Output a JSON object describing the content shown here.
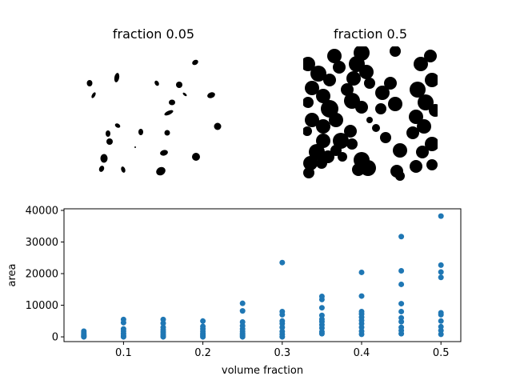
{
  "panels": [
    {
      "title": "fraction 0.05"
    },
    {
      "title": "fraction 0.5"
    }
  ],
  "chart_data": {
    "type": "scatter",
    "xlabel": "volume fraction",
    "ylabel": "area",
    "xlim": [
      0.025,
      0.525
    ],
    "ylim": [
      -1500,
      40500
    ],
    "xticks": [
      0.1,
      0.2,
      0.3,
      0.4,
      0.5
    ],
    "xtick_labels": [
      "0.1",
      "0.2",
      "0.3",
      "0.4",
      "0.5"
    ],
    "yticks": [
      0,
      10000,
      20000,
      30000,
      40000
    ],
    "ytick_labels": [
      "0",
      "10000",
      "20000",
      "30000",
      "40000"
    ],
    "grid": false,
    "marker_color": "#1f77b4",
    "points": [
      {
        "x": 0.05,
        "y": 0
      },
      {
        "x": 0.05,
        "y": 200
      },
      {
        "x": 0.05,
        "y": 500
      },
      {
        "x": 0.05,
        "y": 900
      },
      {
        "x": 0.05,
        "y": 1300
      },
      {
        "x": 0.05,
        "y": 1800
      },
      {
        "x": 0.1,
        "y": 0
      },
      {
        "x": 0.1,
        "y": 400
      },
      {
        "x": 0.1,
        "y": 1000
      },
      {
        "x": 0.1,
        "y": 1800
      },
      {
        "x": 0.1,
        "y": 2500
      },
      {
        "x": 0.1,
        "y": 4500
      },
      {
        "x": 0.1,
        "y": 5500
      },
      {
        "x": 0.15,
        "y": 0
      },
      {
        "x": 0.15,
        "y": 400
      },
      {
        "x": 0.15,
        "y": 900
      },
      {
        "x": 0.15,
        "y": 1500
      },
      {
        "x": 0.15,
        "y": 2200
      },
      {
        "x": 0.15,
        "y": 3000
      },
      {
        "x": 0.15,
        "y": 4300
      },
      {
        "x": 0.15,
        "y": 5500
      },
      {
        "x": 0.2,
        "y": 0
      },
      {
        "x": 0.2,
        "y": 500
      },
      {
        "x": 0.2,
        "y": 1000
      },
      {
        "x": 0.2,
        "y": 1700
      },
      {
        "x": 0.2,
        "y": 2500
      },
      {
        "x": 0.2,
        "y": 3300
      },
      {
        "x": 0.2,
        "y": 5000
      },
      {
        "x": 0.25,
        "y": 0
      },
      {
        "x": 0.25,
        "y": 500
      },
      {
        "x": 0.25,
        "y": 1000
      },
      {
        "x": 0.25,
        "y": 1700
      },
      {
        "x": 0.25,
        "y": 2500
      },
      {
        "x": 0.25,
        "y": 3500
      },
      {
        "x": 0.25,
        "y": 4700
      },
      {
        "x": 0.25,
        "y": 8200
      },
      {
        "x": 0.25,
        "y": 10600
      },
      {
        "x": 0.3,
        "y": 0
      },
      {
        "x": 0.3,
        "y": 800
      },
      {
        "x": 0.3,
        "y": 1700
      },
      {
        "x": 0.3,
        "y": 3000
      },
      {
        "x": 0.3,
        "y": 4200
      },
      {
        "x": 0.3,
        "y": 5000
      },
      {
        "x": 0.3,
        "y": 7000
      },
      {
        "x": 0.3,
        "y": 8000
      },
      {
        "x": 0.3,
        "y": 23500
      },
      {
        "x": 0.35,
        "y": 1000
      },
      {
        "x": 0.35,
        "y": 1600
      },
      {
        "x": 0.35,
        "y": 2800
      },
      {
        "x": 0.35,
        "y": 3800
      },
      {
        "x": 0.35,
        "y": 4800
      },
      {
        "x": 0.35,
        "y": 5600
      },
      {
        "x": 0.35,
        "y": 6800
      },
      {
        "x": 0.35,
        "y": 9200
      },
      {
        "x": 0.35,
        "y": 11800
      },
      {
        "x": 0.35,
        "y": 12800
      },
      {
        "x": 0.4,
        "y": 800
      },
      {
        "x": 0.4,
        "y": 1800
      },
      {
        "x": 0.4,
        "y": 3000
      },
      {
        "x": 0.4,
        "y": 4200
      },
      {
        "x": 0.4,
        "y": 5200
      },
      {
        "x": 0.4,
        "y": 6200
      },
      {
        "x": 0.4,
        "y": 7200
      },
      {
        "x": 0.4,
        "y": 8000
      },
      {
        "x": 0.4,
        "y": 12900
      },
      {
        "x": 0.4,
        "y": 20400
      },
      {
        "x": 0.45,
        "y": 1000
      },
      {
        "x": 0.45,
        "y": 2000
      },
      {
        "x": 0.45,
        "y": 3000
      },
      {
        "x": 0.45,
        "y": 4800
      },
      {
        "x": 0.45,
        "y": 6000
      },
      {
        "x": 0.45,
        "y": 8000
      },
      {
        "x": 0.45,
        "y": 10500
      },
      {
        "x": 0.45,
        "y": 16600
      },
      {
        "x": 0.45,
        "y": 20900
      },
      {
        "x": 0.45,
        "y": 31700
      },
      {
        "x": 0.5,
        "y": 800
      },
      {
        "x": 0.5,
        "y": 2000
      },
      {
        "x": 0.5,
        "y": 3200
      },
      {
        "x": 0.5,
        "y": 5000
      },
      {
        "x": 0.5,
        "y": 7000
      },
      {
        "x": 0.5,
        "y": 7600
      },
      {
        "x": 0.5,
        "y": 18800
      },
      {
        "x": 0.5,
        "y": 20500
      },
      {
        "x": 0.5,
        "y": 22700
      },
      {
        "x": 0.5,
        "y": 38200
      }
    ]
  }
}
